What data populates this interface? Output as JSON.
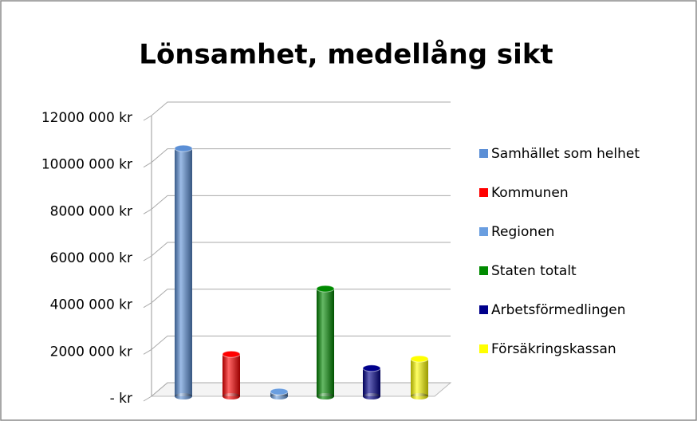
{
  "chart_data": {
    "type": "bar",
    "title": "Lönsamhet, medellång sikt",
    "categories": [
      null
    ],
    "series": [
      {
        "name": "Samhället som helhet",
        "color": "#5b8fd6",
        "values": [
          10600000
        ]
      },
      {
        "name": "Kommunen",
        "color": "#ff0000",
        "values": [
          1800000
        ]
      },
      {
        "name": "Regionen",
        "color": "#6a9ee0",
        "values": [
          200000
        ]
      },
      {
        "name": "Staten totalt",
        "color": "#008a00",
        "values": [
          4600000
        ]
      },
      {
        "name": "Arbetsförmedlingen",
        "color": "#00008b",
        "values": [
          1200000
        ]
      },
      {
        "name": "Försäkringskassan",
        "color": "#ffff00",
        "values": [
          1600000
        ]
      }
    ],
    "ylim": [
      0,
      12000000
    ],
    "yticks": [
      {
        "value": 0,
        "label": "-   kr"
      },
      {
        "value": 2000000,
        "label": "2000 000 kr"
      },
      {
        "value": 4000000,
        "label": "4000 000 kr"
      },
      {
        "value": 6000000,
        "label": "6000 000 kr"
      },
      {
        "value": 8000000,
        "label": "8000 000 kr"
      },
      {
        "value": 10000000,
        "label": "10000 000 kr"
      },
      {
        "value": 12000000,
        "label": "12000 000 kr"
      }
    ],
    "grid": true,
    "legend": "right"
  }
}
